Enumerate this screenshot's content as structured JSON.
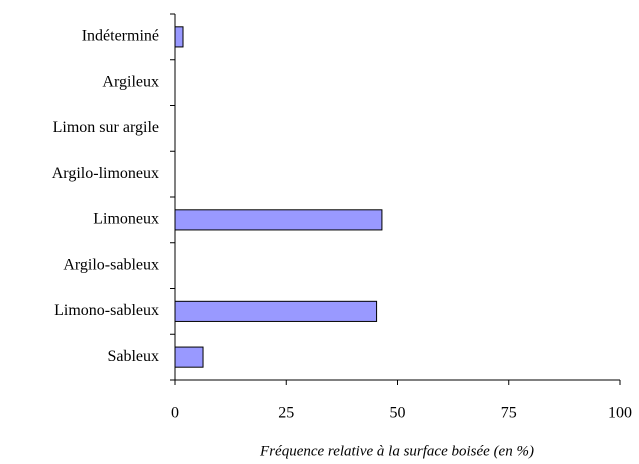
{
  "chart_data": {
    "type": "hbar",
    "categories": [
      "Indéterminé",
      "Argileux",
      "Limon sur argile",
      "Argilo-limoneux",
      "Limoneux",
      "Argilo-sableux",
      "Limono-sableux",
      "Sableux"
    ],
    "values": [
      1.8,
      0,
      0,
      0,
      46.5,
      0,
      45.3,
      6.3
    ],
    "color": "#9999ff",
    "xlabel": "Fréquence relative à la surface boisée (en %)",
    "xlim": [
      0,
      100
    ],
    "xticks": [
      0,
      25,
      50,
      75,
      100
    ]
  }
}
